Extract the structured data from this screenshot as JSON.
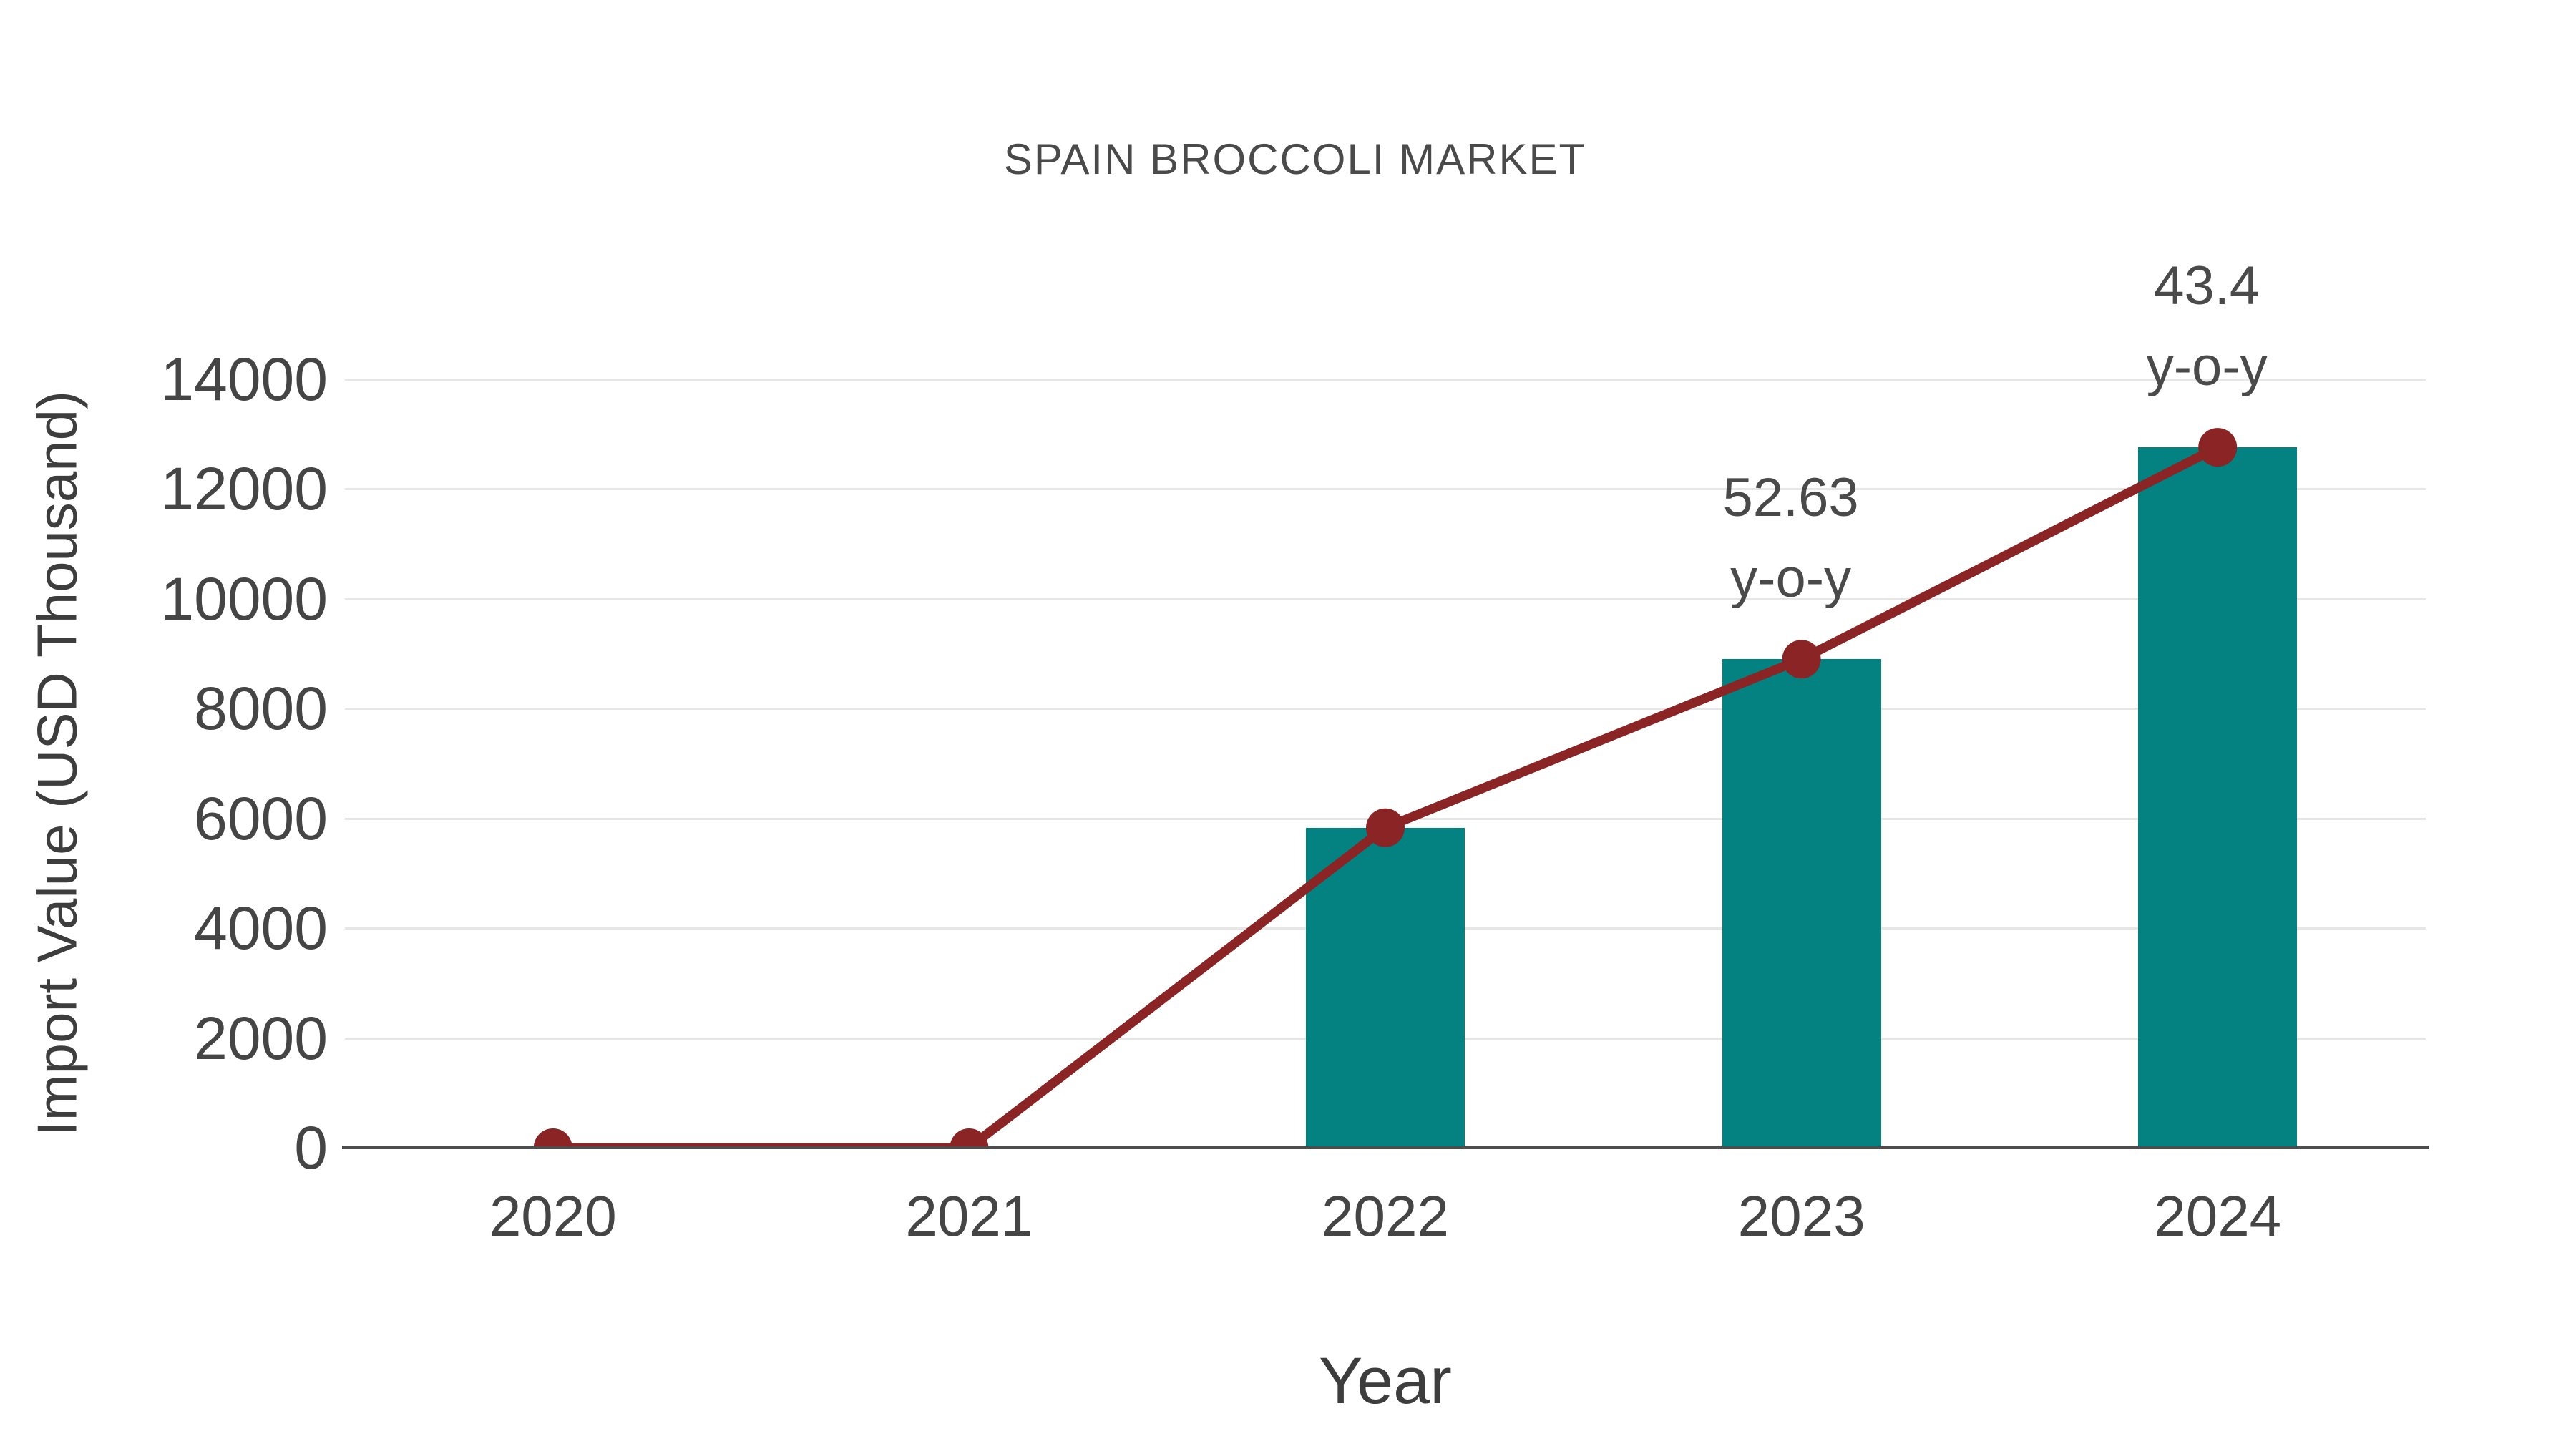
{
  "title": "SPAIN BROCCOLI MARKET",
  "chart_data": {
    "type": "bar",
    "subtype": "bar-and-line-combo",
    "title": "SPAIN BROCCOLI MARKET",
    "xlabel": "Year",
    "ylabel": "Import Value (USD Thousand)",
    "categories": [
      "2020",
      "2021",
      "2022",
      "2023",
      "2024"
    ],
    "series": [
      {
        "name": "Import Value bars",
        "type": "bar",
        "color": "#048181",
        "values": [
          0,
          0,
          5830,
          8900,
          12760
        ]
      },
      {
        "name": "Import Value trend line",
        "type": "line",
        "color": "#8b2424",
        "values": [
          0,
          0,
          5830,
          8900,
          12760
        ]
      }
    ],
    "ylim": [
      0,
      14000
    ],
    "yticks": [
      0,
      2000,
      4000,
      6000,
      8000,
      10000,
      12000,
      14000
    ],
    "grid": "horizontal",
    "legend": "none",
    "annotations": [
      {
        "category": "2023",
        "value_label": "52.63",
        "suffix_label": "y-o-y"
      },
      {
        "category": "2024",
        "value_label": "43.4",
        "suffix_label": "y-o-y"
      }
    ]
  },
  "colors": {
    "bar": "#048181",
    "line": "#8b2424",
    "gridline": "#e6e6e6",
    "axis_line": "#4d4d4d",
    "tick_text": "#454545",
    "title_text": "#4a4a4a",
    "axis_title_text": "#3d3d3d",
    "background": "#ffffff"
  }
}
